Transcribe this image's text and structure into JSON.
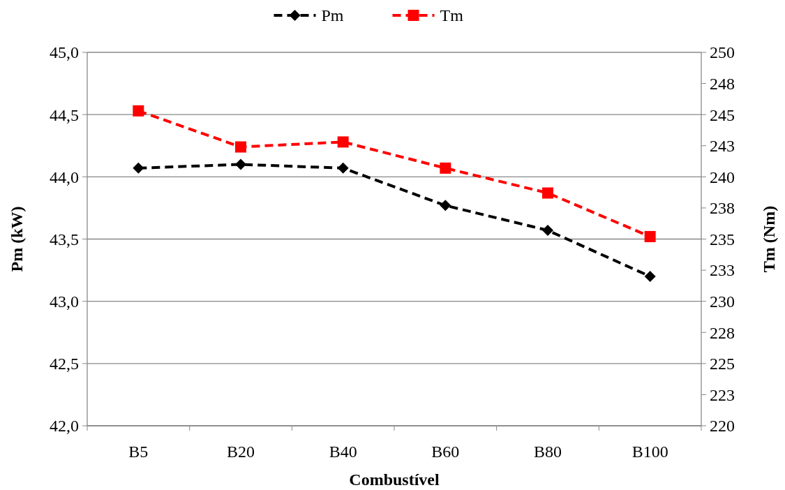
{
  "chart_data": {
    "type": "line",
    "xlabel": "Combustível",
    "ylabel": "Pm (kW)",
    "y2label": "Tm (Nm)",
    "categories": [
      "B5",
      "B20",
      "B40",
      "B60",
      "B80",
      "B100"
    ],
    "series": [
      {
        "name": "Pm",
        "color": "#000000",
        "marker": "diamond",
        "line_style": "dashed",
        "values": [
          44.07,
          44.1,
          44.07,
          43.77,
          43.57,
          43.2
        ]
      },
      {
        "name": "Tm",
        "color": "#ff0000",
        "marker": "square",
        "line_style": "dashed",
        "axis": "y2",
        "values": [
          245.3,
          242.4,
          242.8,
          240.7,
          238.7,
          235.2
        ]
      }
    ],
    "ylim": [
      42,
      45
    ],
    "yticks": [
      {
        "value": 42,
        "label": "42,0"
      },
      {
        "value": 42.5,
        "label": "42,5"
      },
      {
        "value": 43,
        "label": "43,0"
      },
      {
        "value": 43.5,
        "label": "43,5"
      },
      {
        "value": 44,
        "label": "44,0"
      },
      {
        "value": 44.5,
        "label": "44,5"
      },
      {
        "value": 45,
        "label": "45,0"
      }
    ],
    "y2lim": [
      220,
      250
    ],
    "y2ticks": [
      220,
      {
        "value": 222.5,
        "label": "223"
      },
      225,
      {
        "value": 227.5,
        "label": "228"
      },
      230,
      {
        "value": 232.5,
        "label": "233"
      },
      235,
      {
        "value": 237.5,
        "label": "238"
      },
      240,
      {
        "value": 242.5,
        "label": "243"
      },
      245,
      {
        "value": 247.5,
        "label": "248"
      },
      250
    ],
    "grid": "y",
    "legend": "top"
  }
}
